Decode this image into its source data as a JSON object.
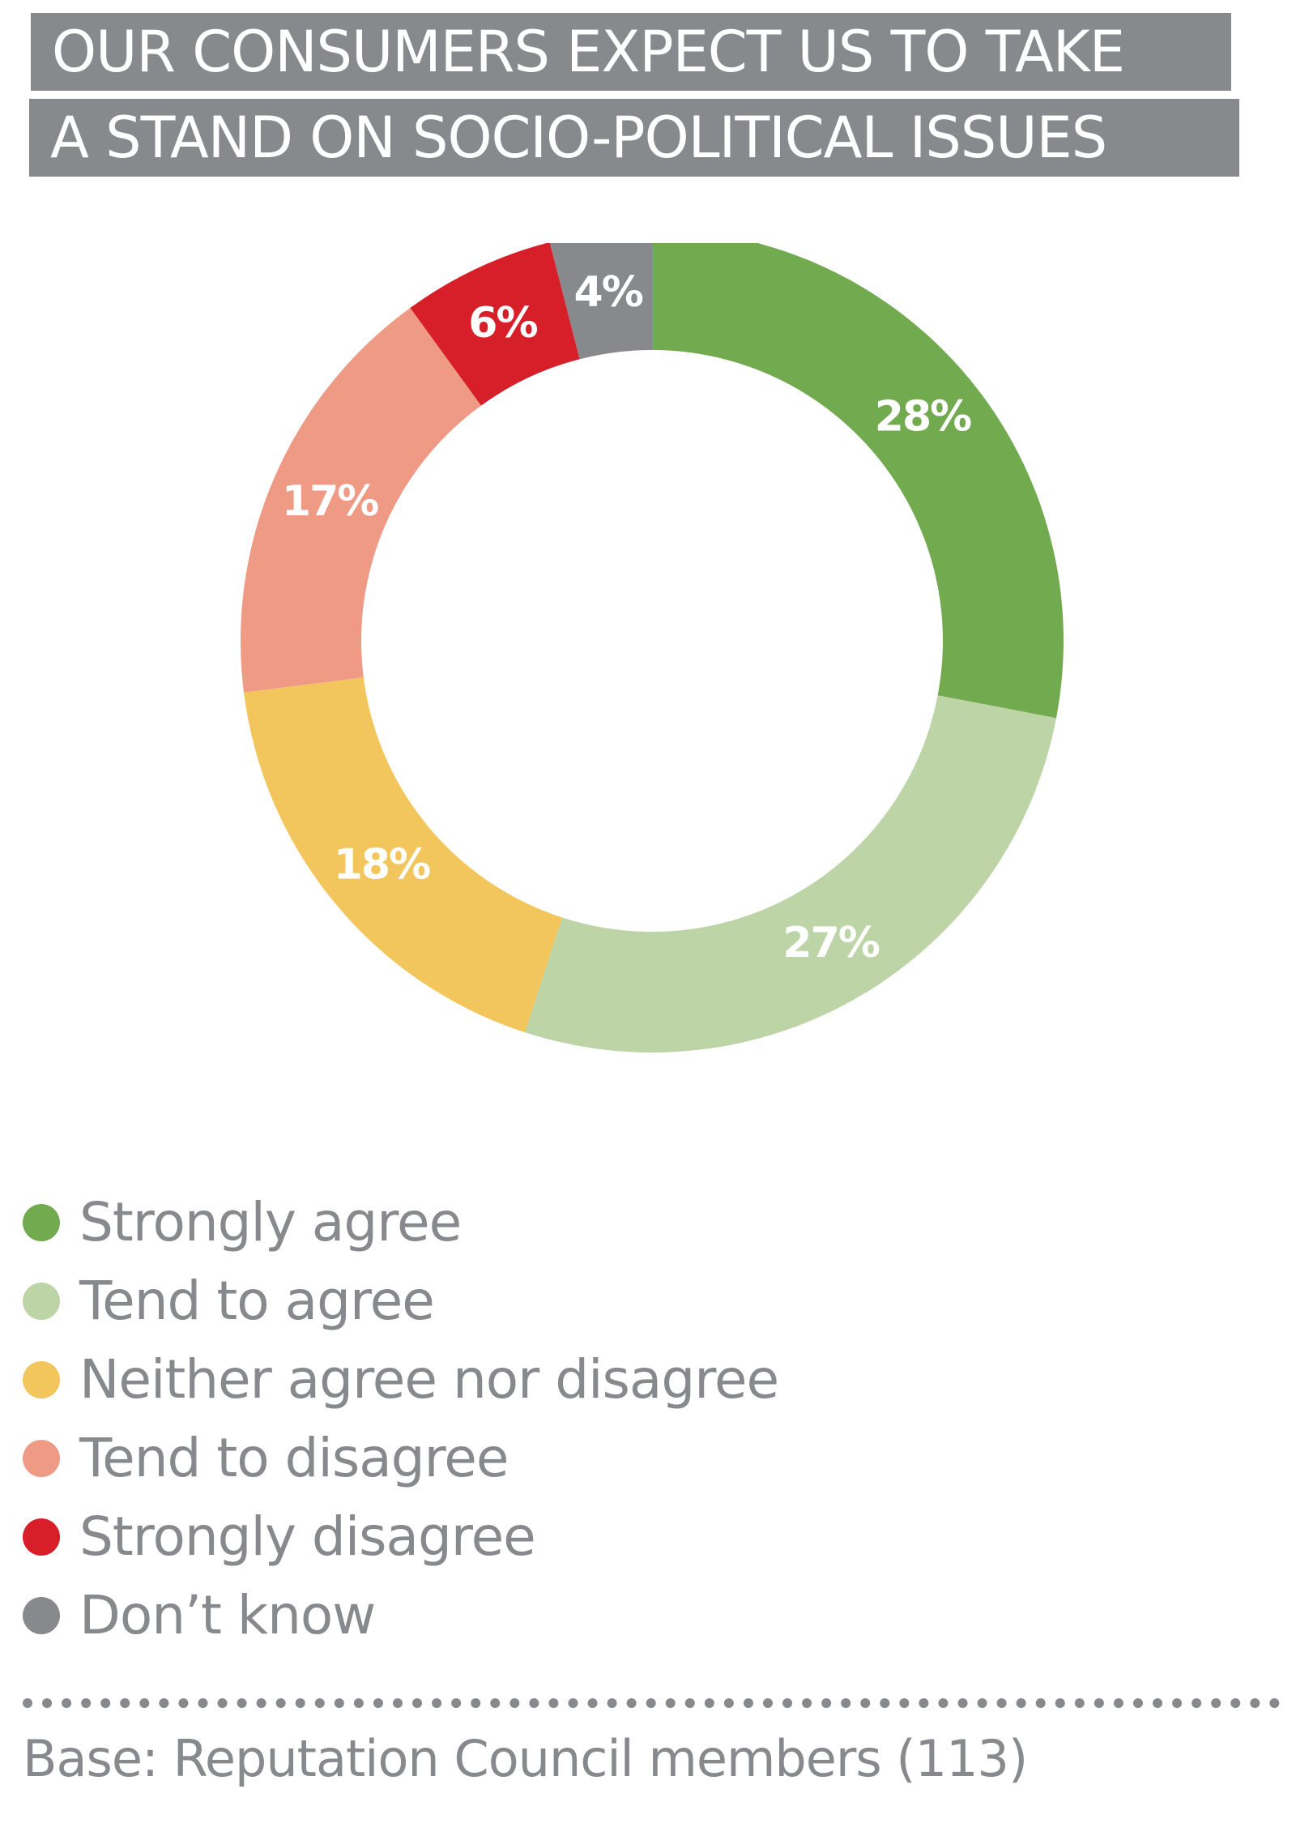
{
  "title": {
    "line1": "OUR CONSUMERS EXPECT US TO TAKE",
    "line2": "A STAND ON SOCIO-POLITICAL ISSUES"
  },
  "chart_data": {
    "type": "pie",
    "variant": "donut",
    "title": "OUR CONSUMERS EXPECT US TO TAKE A STAND ON SOCIO-POLITICAL ISSUES",
    "categories": [
      "Strongly agree",
      "Tend to agree",
      "Neither agree nor disagree",
      "Tend to disagree",
      "Strongly disagree",
      "Don’t know"
    ],
    "values": [
      28,
      27,
      18,
      17,
      6,
      4
    ],
    "labels": [
      "28%",
      "27%",
      "18%",
      "17%",
      "6%",
      "4%"
    ],
    "colors": [
      "#72aa50",
      "#bcd4a6",
      "#f2c65c",
      "#ee9a85",
      "#d71f29",
      "#87898c"
    ],
    "legend_position": "bottom"
  },
  "legend": {
    "items": [
      {
        "label": "Strongly agree",
        "color": "#72aa50"
      },
      {
        "label": "Tend to agree",
        "color": "#bcd4a6"
      },
      {
        "label": "Neither agree nor disagree",
        "color": "#f2c65c"
      },
      {
        "label": "Tend to disagree",
        "color": "#ee9a85"
      },
      {
        "label": "Strongly disagree",
        "color": "#d71f29"
      },
      {
        "label": "Don’t know",
        "color": "#87898c"
      }
    ]
  },
  "footer": {
    "base_note": "Base: Reputation Council members (113)"
  }
}
